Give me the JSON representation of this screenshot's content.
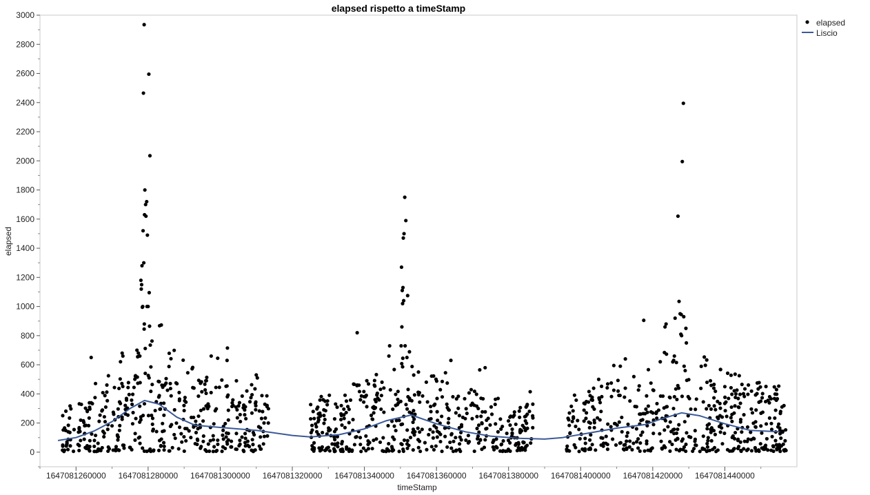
{
  "chart_data": {
    "type": "scatter",
    "title": "elapsed rispetto a timeStamp",
    "xlabel": "timeStamp",
    "ylabel": "elapsed",
    "xlim": [
      1647081250000,
      1647081460000
    ],
    "ylim": [
      -100,
      3000
    ],
    "x_ticks": [
      1647081260000,
      1647081280000,
      1647081300000,
      1647081320000,
      1647081340000,
      1647081360000,
      1647081380000,
      1647081400000,
      1647081420000,
      1647081440000
    ],
    "x_tick_labels": [
      "1647081260000",
      "1647081280000",
      "1647081300000",
      "1647081320000",
      "1647081340000",
      "1647081360000",
      "1647081380000",
      "1647081400000",
      "1647081420000",
      "1647081440000"
    ],
    "y_ticks": [
      0,
      200,
      400,
      600,
      800,
      1000,
      1200,
      1400,
      1600,
      1800,
      2000,
      2200,
      2400,
      2600,
      2800,
      3000
    ],
    "grid": false,
    "legend_position": "top-right outside",
    "legend": [
      {
        "name": "elapsed",
        "marker": "dot",
        "color": "#000000"
      },
      {
        "name": "Liscio",
        "marker": "line",
        "color": "#3b5998"
      }
    ],
    "series": [
      {
        "name": "elapsed",
        "kind": "scatter",
        "color": "#000000",
        "points": [
          [
            1647081278900,
            2935
          ],
          [
            1647081280200,
            2595
          ],
          [
            1647081278700,
            2465
          ],
          [
            1647081280500,
            2035
          ],
          [
            1647081279100,
            1800
          ],
          [
            1647081279600,
            1720
          ],
          [
            1647081279300,
            1700
          ],
          [
            1647081279000,
            1630
          ],
          [
            1647081279400,
            1620
          ],
          [
            1647081278600,
            1520
          ],
          [
            1647081279800,
            1490
          ],
          [
            1647081278800,
            1300
          ],
          [
            1647081278300,
            1280
          ],
          [
            1647081278000,
            1180
          ],
          [
            1647081278200,
            1150
          ],
          [
            1647081278100,
            1120
          ],
          [
            1647081280300,
            1095
          ],
          [
            1647081278500,
            1000
          ],
          [
            1647081279700,
            1000
          ],
          [
            1647081280000,
            1000
          ],
          [
            1647081278400,
            995
          ],
          [
            1647081280400,
            865
          ],
          [
            1647081278900,
            845
          ],
          [
            1647081280600,
            735
          ],
          [
            1647081276900,
            700
          ],
          [
            1647081277300,
            680
          ],
          [
            1647081277700,
            660
          ],
          [
            1647081277100,
            655
          ],
          [
            1647081264200,
            650
          ],
          [
            1647081272800,
            680
          ],
          [
            1647081273000,
            660
          ],
          [
            1647081297500,
            660
          ],
          [
            1647081299300,
            645
          ],
          [
            1647081302000,
            715
          ],
          [
            1647081301900,
            630
          ],
          [
            1647081276500,
            525
          ],
          [
            1647081285000,
            505
          ],
          [
            1647081296000,
            490
          ],
          [
            1647081304500,
            490
          ],
          [
            1647081310000,
            530
          ],
          [
            1647081310300,
            510
          ],
          [
            1647081291000,
            545
          ],
          [
            1647081288000,
            470
          ],
          [
            1647081338000,
            820
          ],
          [
            1647081347000,
            730
          ],
          [
            1647081351200,
            1750
          ],
          [
            1647081351500,
            1590
          ],
          [
            1647081351000,
            1500
          ],
          [
            1647081350800,
            1470
          ],
          [
            1647081350300,
            1270
          ],
          [
            1647081350700,
            1130
          ],
          [
            1647081350500,
            1110
          ],
          [
            1647081350900,
            1040
          ],
          [
            1647081350600,
            1020
          ],
          [
            1647081352000,
            1075
          ],
          [
            1647081350400,
            860
          ],
          [
            1647081350200,
            730
          ],
          [
            1647081351300,
            730
          ],
          [
            1647081351800,
            650
          ],
          [
            1647081346800,
            660
          ],
          [
            1647081364000,
            630
          ],
          [
            1647081373500,
            580
          ],
          [
            1647081372000,
            565
          ],
          [
            1647081362500,
            545
          ],
          [
            1647081355000,
            550
          ],
          [
            1647081338500,
            460
          ],
          [
            1647081386000,
            415
          ],
          [
            1647081427000,
            1620
          ],
          [
            1647081428500,
            2395
          ],
          [
            1647081428200,
            1995
          ],
          [
            1647081427300,
            1035
          ],
          [
            1647081427600,
            950
          ],
          [
            1647081427900,
            945
          ],
          [
            1647081426200,
            920
          ],
          [
            1647081428600,
            930
          ],
          [
            1647081427800,
            810
          ],
          [
            1647081428000,
            800
          ],
          [
            1647081429200,
            850
          ],
          [
            1647081423700,
            880
          ],
          [
            1647081423400,
            860
          ],
          [
            1647081417500,
            905
          ],
          [
            1647081412400,
            640
          ],
          [
            1647081409200,
            595
          ],
          [
            1647081411000,
            590
          ],
          [
            1647081425800,
            630
          ],
          [
            1647081426000,
            660
          ],
          [
            1647081428700,
            590
          ],
          [
            1647081429000,
            560
          ],
          [
            1647081444000,
            525
          ],
          [
            1647081449000,
            475
          ],
          [
            1647081405000,
            500
          ],
          [
            1647081436000,
            490
          ],
          [
            1647081437000,
            465
          ],
          [
            1647081440000,
            450
          ]
        ]
      },
      {
        "name": "Liscio",
        "kind": "line",
        "color": "#3b5998",
        "points": [
          [
            1647081255000,
            80
          ],
          [
            1647081260000,
            100
          ],
          [
            1647081265000,
            145
          ],
          [
            1647081270000,
            210
          ],
          [
            1647081275000,
            300
          ],
          [
            1647081279000,
            355
          ],
          [
            1647081283000,
            330
          ],
          [
            1647081288000,
            240
          ],
          [
            1647081293000,
            185
          ],
          [
            1647081300000,
            170
          ],
          [
            1647081310000,
            150
          ],
          [
            1647081320000,
            115
          ],
          [
            1647081325000,
            105
          ],
          [
            1647081333000,
            120
          ],
          [
            1647081340000,
            160
          ],
          [
            1647081346000,
            215
          ],
          [
            1647081353000,
            255
          ],
          [
            1647081360000,
            195
          ],
          [
            1647081368000,
            140
          ],
          [
            1647081375000,
            110
          ],
          [
            1647081383000,
            95
          ],
          [
            1647081390000,
            90
          ],
          [
            1647081395000,
            100
          ],
          [
            1647081402000,
            130
          ],
          [
            1647081410000,
            165
          ],
          [
            1647081418000,
            190
          ],
          [
            1647081422000,
            225
          ],
          [
            1647081428000,
            270
          ],
          [
            1647081433000,
            250
          ],
          [
            1647081440000,
            195
          ],
          [
            1647081447000,
            150
          ],
          [
            1647081455000,
            140
          ]
        ]
      }
    ]
  }
}
